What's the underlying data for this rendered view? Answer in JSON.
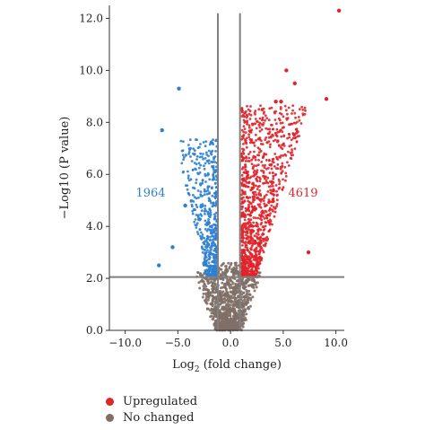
{
  "chart_data": {
    "type": "scatter",
    "xlabel_main": "Log",
    "xlabel_sub": "2",
    "xlabel_rest": " (fold change)",
    "ylabel": "−Log10 (P value)",
    "xlim": [
      -11.5,
      10.8
    ],
    "ylim": [
      0,
      12.5
    ],
    "x_ticks": [
      -10,
      -5,
      0,
      5,
      10
    ],
    "x_tick_labels": [
      "−10.0",
      "−5.0",
      "0.0",
      "5.0",
      "10.0"
    ],
    "y_ticks": [
      0,
      2,
      4,
      6,
      8,
      10,
      12
    ],
    "y_tick_labels": [
      "0.0",
      "2.0",
      "4.0",
      "6.0",
      "8.0",
      "10.0",
      "12.0"
    ],
    "thresholds": {
      "fold_change": [
        -1.2,
        0.9
      ],
      "pvalue": 2.05
    },
    "down_count": "1964",
    "up_count": "4619",
    "series": [
      {
        "name": "Upregulated",
        "color": "#e0252b"
      },
      {
        "name": "No changed",
        "color": "#8a8a8a"
      }
    ],
    "down_color": "#2f7fd0",
    "background_color": "#7f6f67",
    "highlight_points": [
      {
        "x": 10.3,
        "y": 12.3,
        "group": "up"
      },
      {
        "x": 9.1,
        "y": 8.9,
        "group": "up"
      },
      {
        "x": 5.3,
        "y": 10.0,
        "group": "up"
      },
      {
        "x": 6.1,
        "y": 9.5,
        "group": "up"
      },
      {
        "x": 4.3,
        "y": 8.8,
        "group": "up"
      },
      {
        "x": 4.8,
        "y": 8.8,
        "group": "up"
      },
      {
        "x": 7.4,
        "y": 3.0,
        "group": "up"
      },
      {
        "x": -4.9,
        "y": 9.3,
        "group": "down"
      },
      {
        "x": -6.5,
        "y": 7.7,
        "group": "down"
      },
      {
        "x": -6.8,
        "y": 2.5,
        "group": "down"
      },
      {
        "x": -5.5,
        "y": 3.2,
        "group": "down"
      },
      {
        "x": -4.3,
        "y": 4.8,
        "group": "down"
      }
    ]
  },
  "legend": {
    "items": [
      {
        "label": "Upregulated",
        "color": "#e0252b"
      },
      {
        "label": "No changed",
        "color": "#7f6f67"
      }
    ]
  }
}
